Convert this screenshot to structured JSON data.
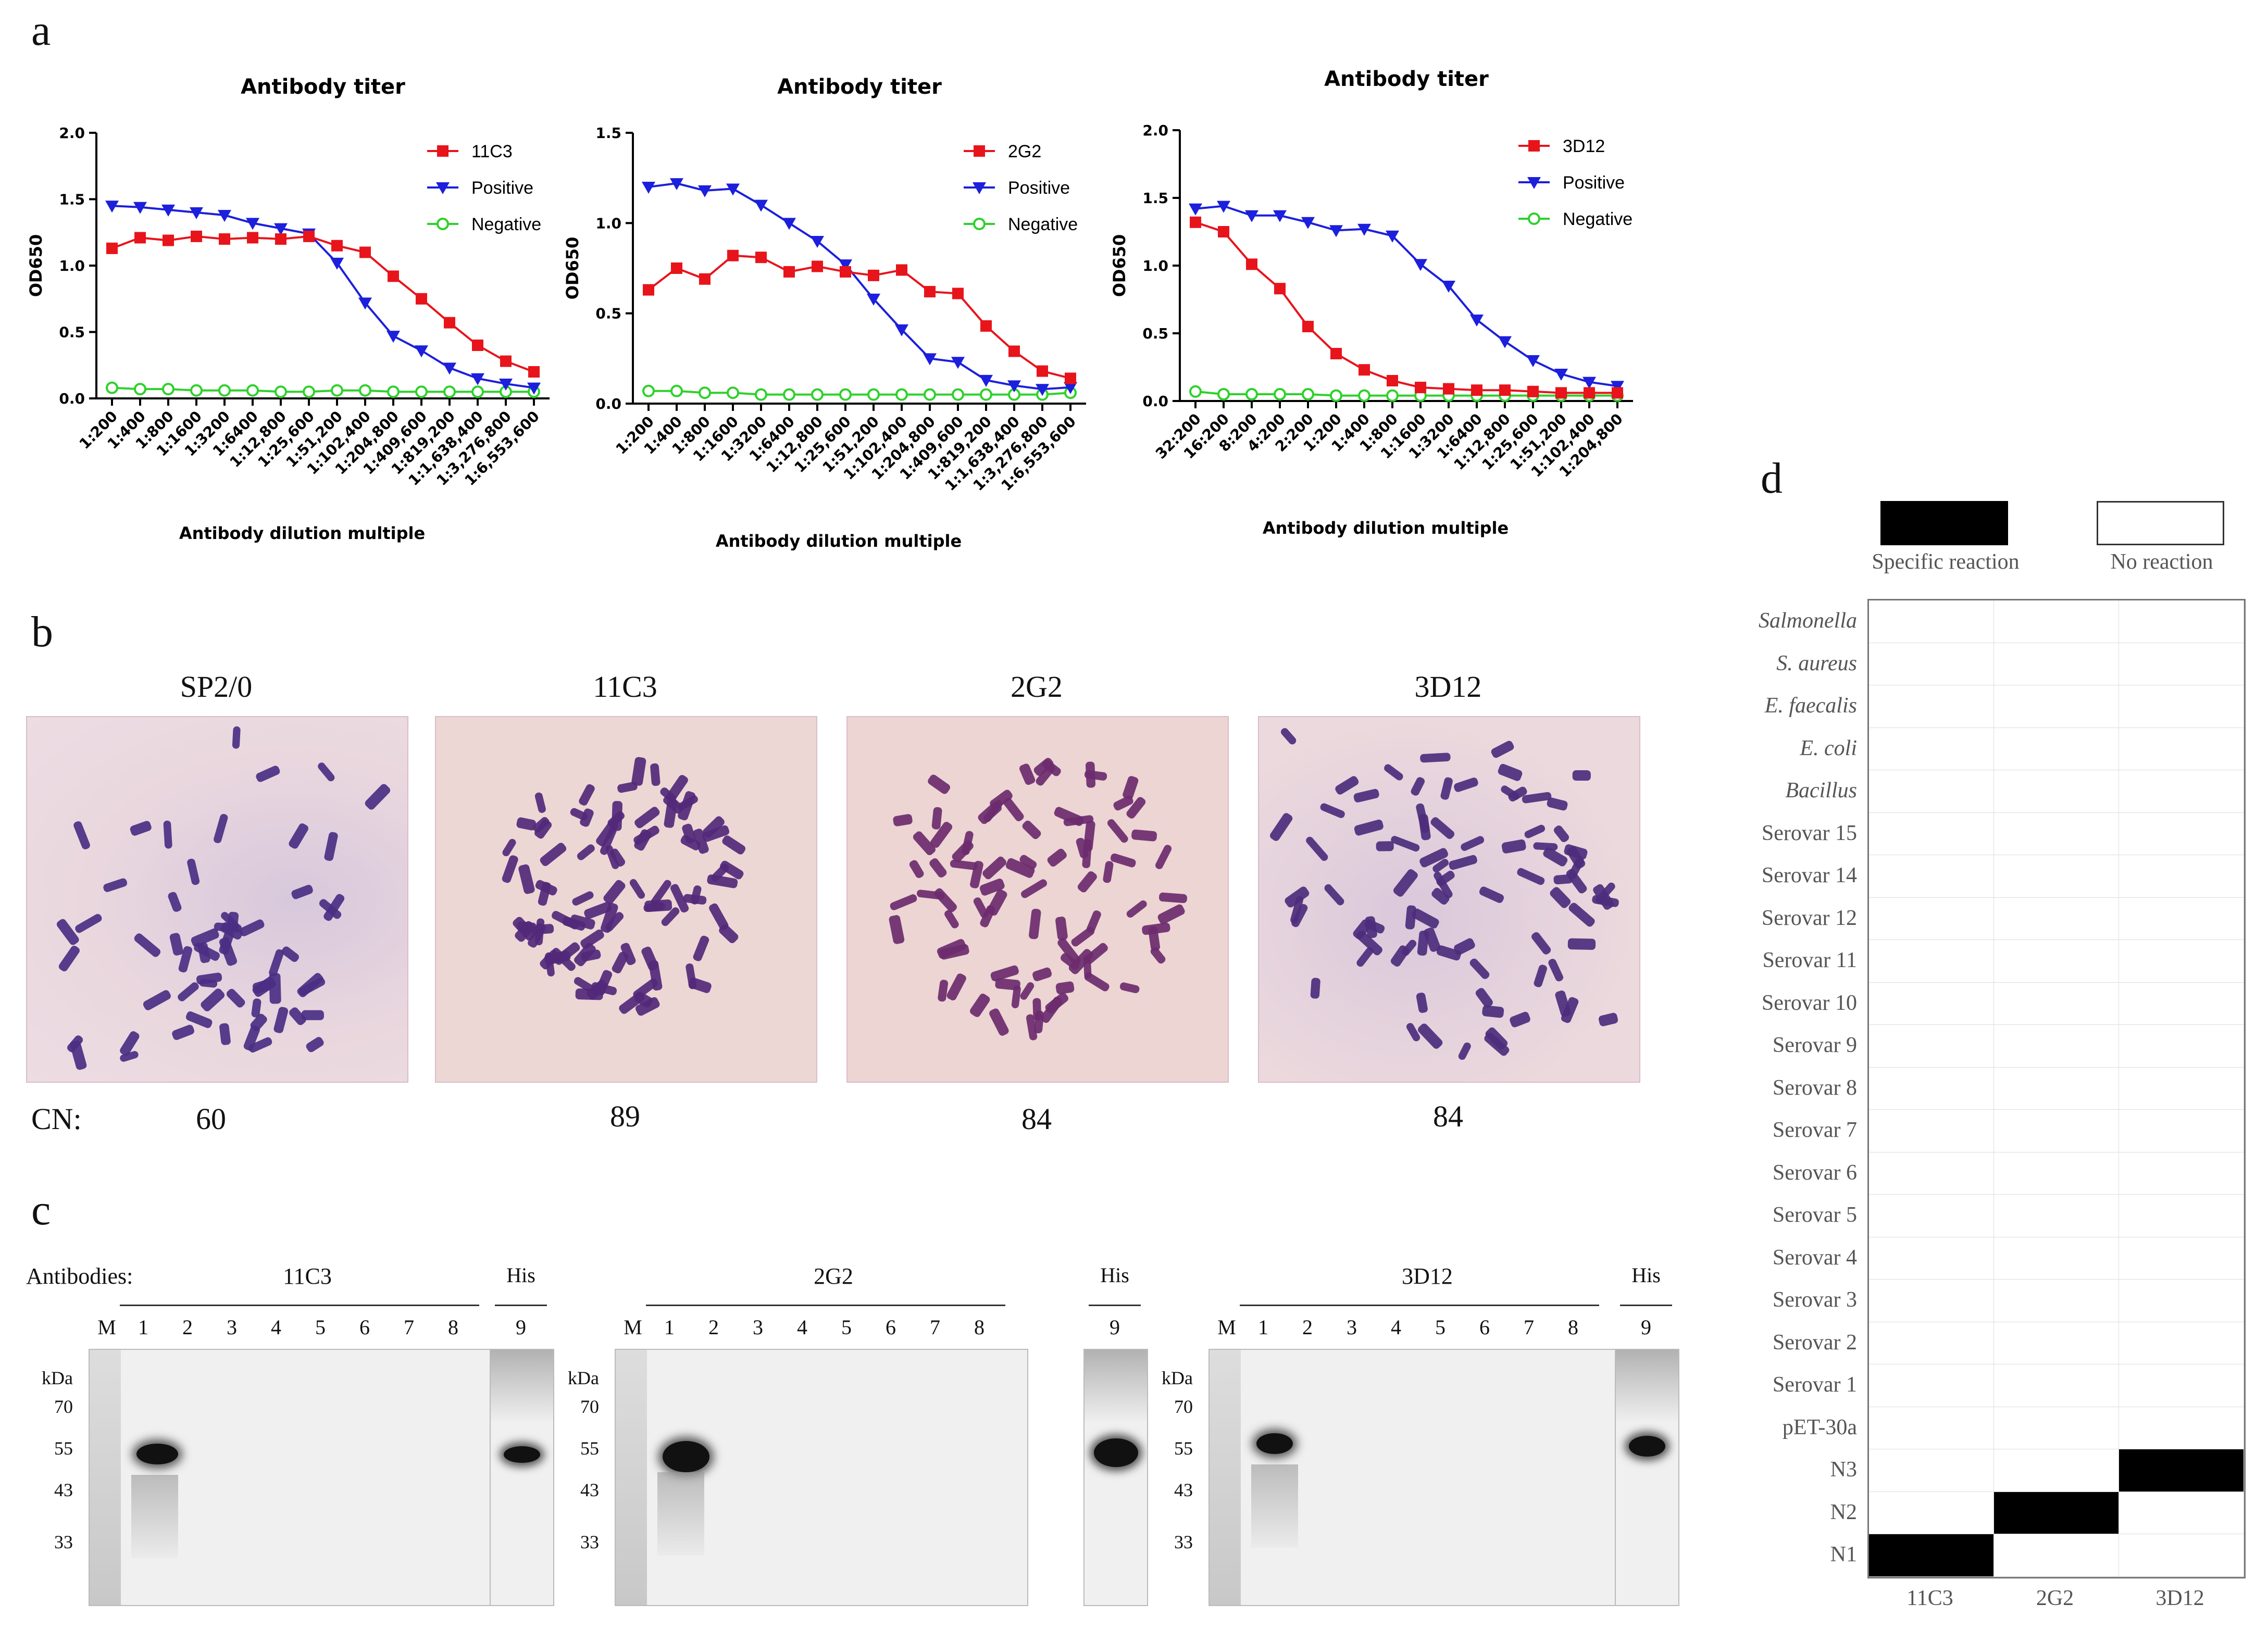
{
  "panels": {
    "a": "a",
    "b": "b",
    "c": "c",
    "d": "d"
  },
  "chart_data": [
    {
      "type": "line",
      "title": "Antibody titer",
      "xlabel": "Antibody dilution multiple",
      "ylabel": "OD650",
      "ylim": [
        0,
        2.0
      ],
      "yticks": [
        "0.0",
        "0.5",
        "1.0",
        "1.5",
        "2.0"
      ],
      "categories": [
        "1:200",
        "1:400",
        "1:800",
        "1:1600",
        "1:3200",
        "1:6400",
        "1:12,800",
        "1:25,600",
        "1:51,200",
        "1:102,400",
        "1:204,800",
        "1:409,600",
        "1:819,200",
        "1:1,638,400",
        "1:3,276,800",
        "1:6,553,600"
      ],
      "series": [
        {
          "name": "11C3",
          "color": "#e8141b",
          "marker": "square",
          "values": [
            1.13,
            1.21,
            1.19,
            1.22,
            1.2,
            1.21,
            1.2,
            1.22,
            1.15,
            1.1,
            0.92,
            0.75,
            0.57,
            0.4,
            0.28,
            0.2
          ]
        },
        {
          "name": "Positive",
          "color": "#1c1fdb",
          "marker": "triangle-down",
          "values": [
            1.45,
            1.44,
            1.42,
            1.4,
            1.38,
            1.32,
            1.28,
            1.24,
            1.02,
            0.72,
            0.47,
            0.36,
            0.23,
            0.15,
            0.11,
            0.08
          ]
        },
        {
          "name": "Negative",
          "color": "#2ed12b",
          "marker": "circle",
          "values": [
            0.08,
            0.07,
            0.07,
            0.06,
            0.06,
            0.06,
            0.05,
            0.05,
            0.06,
            0.06,
            0.05,
            0.05,
            0.05,
            0.05,
            0.05,
            0.05
          ]
        }
      ]
    },
    {
      "type": "line",
      "title": "Antibody titer",
      "xlabel": "Antibody dilution multiple",
      "ylabel": "OD650",
      "ylim": [
        0,
        1.5
      ],
      "yticks": [
        "0.0",
        "0.5",
        "1.0",
        "1.5"
      ],
      "categories": [
        "1:200",
        "1:400",
        "1:800",
        "1:1600",
        "1:3200",
        "1:6400",
        "1:12,800",
        "1:25,600",
        "1:51,200",
        "1:102,400",
        "1:204,800",
        "1:409,600",
        "1:819,200",
        "1:1,638,400",
        "1:3,276,800",
        "1:6,553,600"
      ],
      "series": [
        {
          "name": "2G2",
          "color": "#e8141b",
          "marker": "square",
          "values": [
            0.63,
            0.75,
            0.69,
            0.82,
            0.81,
            0.73,
            0.76,
            0.73,
            0.71,
            0.74,
            0.62,
            0.61,
            0.43,
            0.29,
            0.18,
            0.14
          ]
        },
        {
          "name": "Positive",
          "color": "#1c1fdb",
          "marker": "triangle-down",
          "values": [
            1.2,
            1.22,
            1.18,
            1.19,
            1.1,
            1.0,
            0.9,
            0.77,
            0.58,
            0.41,
            0.25,
            0.23,
            0.13,
            0.1,
            0.08,
            0.09
          ]
        },
        {
          "name": "Negative",
          "color": "#2ed12b",
          "marker": "circle",
          "values": [
            0.07,
            0.07,
            0.06,
            0.06,
            0.05,
            0.05,
            0.05,
            0.05,
            0.05,
            0.05,
            0.05,
            0.05,
            0.05,
            0.05,
            0.05,
            0.06
          ]
        }
      ]
    },
    {
      "type": "line",
      "title": "Antibody titer",
      "xlabel": "Antibody dilution multiple",
      "ylabel": "OD650",
      "ylim": [
        0,
        2.0
      ],
      "yticks": [
        "0.0",
        "0.5",
        "1.0",
        "1.5",
        "2.0"
      ],
      "categories": [
        "32:200",
        "16:200",
        "8:200",
        "4:200",
        "2:200",
        "1:200",
        "1:400",
        "1:800",
        "1:1600",
        "1:3200",
        "1:6400",
        "1:12,800",
        "1:25,600",
        "1:51,200",
        "1:102,400",
        "1:204,800"
      ],
      "series": [
        {
          "name": "3D12",
          "color": "#e8141b",
          "marker": "square",
          "values": [
            1.32,
            1.25,
            1.01,
            0.83,
            0.55,
            0.35,
            0.23,
            0.15,
            0.1,
            0.09,
            0.08,
            0.08,
            0.07,
            0.06,
            0.06,
            0.06
          ]
        },
        {
          "name": "Positive",
          "color": "#1c1fdb",
          "marker": "triangle-down",
          "values": [
            1.42,
            1.44,
            1.37,
            1.37,
            1.32,
            1.26,
            1.27,
            1.22,
            1.01,
            0.85,
            0.6,
            0.44,
            0.3,
            0.2,
            0.14,
            0.11
          ]
        },
        {
          "name": "Negative",
          "color": "#2ed12b",
          "marker": "circle",
          "values": [
            0.07,
            0.05,
            0.05,
            0.05,
            0.05,
            0.04,
            0.04,
            0.04,
            0.04,
            0.04,
            0.04,
            0.04,
            0.04,
            0.04,
            0.04,
            0.04
          ]
        }
      ]
    }
  ],
  "karyotype": {
    "items": [
      {
        "label": "SP2/0",
        "cn": "60"
      },
      {
        "label": "11C3",
        "cn": "89"
      },
      {
        "label": "2G2",
        "cn": "84"
      },
      {
        "label": "3D12",
        "cn": "84"
      }
    ],
    "cn_prefix": "CN:"
  },
  "western": {
    "antibodies_label": "Antibodies:",
    "his_label": "His",
    "kda_label": "kDa",
    "marker_label": "M",
    "lanes": [
      "1",
      "2",
      "3",
      "4",
      "5",
      "6",
      "7",
      "8"
    ],
    "his_lane": "9",
    "blots": [
      {
        "antibody": "11C3",
        "kda": [
          "70",
          "55",
          "43",
          "33"
        ]
      },
      {
        "antibody": "2G2",
        "kda": [
          "70",
          "55",
          "43",
          "33"
        ]
      },
      {
        "antibody": "3D12",
        "kda": [
          "70",
          "55",
          "43",
          "33"
        ]
      }
    ]
  },
  "specificity": {
    "legend_specific": "Specific reaction",
    "legend_none": "No reaction",
    "columns": [
      "11C3",
      "2G2",
      "3D12"
    ],
    "rows": [
      {
        "label": "Salmonella",
        "italic": true,
        "cells": [
          0,
          0,
          0
        ]
      },
      {
        "label": "S. aureus",
        "italic": true,
        "cells": [
          0,
          0,
          0
        ]
      },
      {
        "label": "E. faecalis",
        "italic": true,
        "cells": [
          0,
          0,
          0
        ]
      },
      {
        "label": "E. coli",
        "italic": true,
        "cells": [
          0,
          0,
          0
        ]
      },
      {
        "label": "Bacillus",
        "italic": true,
        "cells": [
          0,
          0,
          0
        ]
      },
      {
        "label": "Serovar 15",
        "italic": false,
        "cells": [
          0,
          0,
          0
        ]
      },
      {
        "label": "Serovar 14",
        "italic": false,
        "cells": [
          0,
          0,
          0
        ]
      },
      {
        "label": "Serovar 12",
        "italic": false,
        "cells": [
          0,
          0,
          0
        ]
      },
      {
        "label": "Serovar 11",
        "italic": false,
        "cells": [
          0,
          0,
          0
        ]
      },
      {
        "label": "Serovar 10",
        "italic": false,
        "cells": [
          0,
          0,
          0
        ]
      },
      {
        "label": "Serovar 9",
        "italic": false,
        "cells": [
          0,
          0,
          0
        ]
      },
      {
        "label": "Serovar 8",
        "italic": false,
        "cells": [
          0,
          0,
          0
        ]
      },
      {
        "label": "Serovar 7",
        "italic": false,
        "cells": [
          0,
          0,
          0
        ]
      },
      {
        "label": "Serovar 6",
        "italic": false,
        "cells": [
          0,
          0,
          0
        ]
      },
      {
        "label": "Serovar 5",
        "italic": false,
        "cells": [
          0,
          0,
          0
        ]
      },
      {
        "label": "Serovar 4",
        "italic": false,
        "cells": [
          0,
          0,
          0
        ]
      },
      {
        "label": "Serovar 3",
        "italic": false,
        "cells": [
          0,
          0,
          0
        ]
      },
      {
        "label": "Serovar 2",
        "italic": false,
        "cells": [
          0,
          0,
          0
        ]
      },
      {
        "label": "Serovar 1",
        "italic": false,
        "cells": [
          0,
          0,
          0
        ]
      },
      {
        "label": "pET-30a",
        "italic": false,
        "cells": [
          0,
          0,
          0
        ]
      },
      {
        "label": "N3",
        "italic": false,
        "cells": [
          0,
          0,
          1
        ]
      },
      {
        "label": "N2",
        "italic": false,
        "cells": [
          0,
          1,
          0
        ]
      },
      {
        "label": "N1",
        "italic": false,
        "cells": [
          1,
          0,
          0
        ]
      }
    ]
  }
}
